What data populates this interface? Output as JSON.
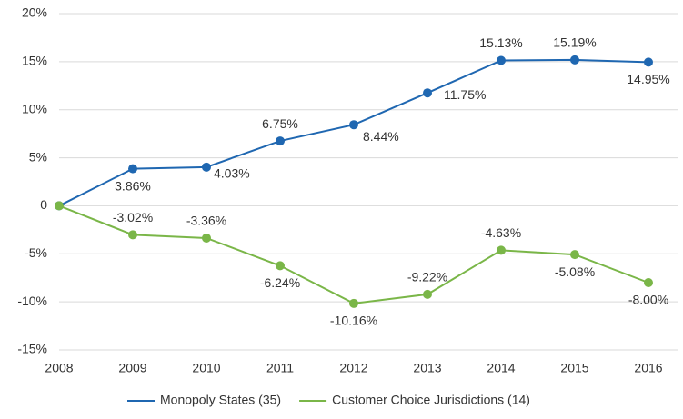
{
  "chart_data": {
    "type": "line",
    "categories": [
      "2008",
      "2009",
      "2010",
      "2011",
      "2012",
      "2013",
      "2014",
      "2015",
      "2016"
    ],
    "series": [
      {
        "name": "Monopoly States (35)",
        "color": "#1f67b1",
        "values": [
          0,
          3.86,
          4.03,
          6.75,
          8.44,
          11.75,
          15.13,
          15.19,
          14.95
        ],
        "value_labels": [
          null,
          "3.86%",
          "4.03%",
          "6.75%",
          "8.44%",
          "11.75%",
          "15.13%",
          "15.19%",
          "14.95%"
        ]
      },
      {
        "name": "Customer Choice Jurisdictions (14)",
        "color": "#7ab648",
        "values": [
          0,
          -3.02,
          -3.36,
          -6.24,
          -10.16,
          -9.22,
          -4.63,
          -5.08,
          -8.0
        ],
        "value_labels": [
          null,
          "-3.02%",
          "-3.36%",
          "-6.24%",
          "-10.16%",
          "-9.22%",
          "-4.63%",
          "-5.08%",
          "-8.00%"
        ]
      }
    ],
    "ylim": [
      -15,
      20
    ],
    "yticks": [
      {
        "value": -15,
        "label": "-15%"
      },
      {
        "value": -10,
        "label": "-10%"
      },
      {
        "value": -5,
        "label": "-5%"
      },
      0,
      {
        "value": 5,
        "label": "5%"
      },
      {
        "value": 10,
        "label": "10%"
      },
      {
        "value": 15,
        "label": "15%"
      },
      {
        "value": 20,
        "label": "20%"
      }
    ],
    "grid": true,
    "legend": "bottom"
  }
}
